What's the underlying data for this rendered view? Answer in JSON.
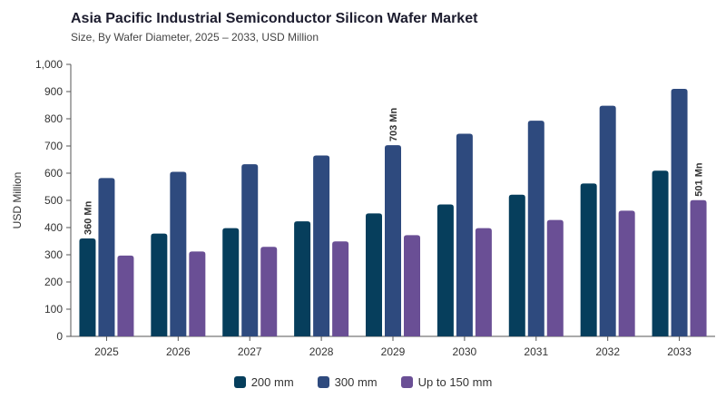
{
  "chart_data": {
    "type": "bar",
    "title": "Asia Pacific Industrial Semiconductor Silicon Wafer Market",
    "subtitle": "Size, By Wafer Diameter, 2025 – 2033, USD Million",
    "xlabel": "",
    "ylabel": "USD Million",
    "ylim": [
      0,
      1000
    ],
    "yticks": [
      "0",
      "100",
      "200",
      "300",
      "400",
      "500",
      "600",
      "700",
      "800",
      "900",
      "1,000"
    ],
    "categories": [
      "2025",
      "2026",
      "2027",
      "2028",
      "2029",
      "2030",
      "2031",
      "2032",
      "2033"
    ],
    "series": [
      {
        "name": "200 mm",
        "color": "#063e5c",
        "values": [
          360,
          378,
          398,
          423,
          452,
          485,
          521,
          562,
          609
        ]
      },
      {
        "name": "300 mm",
        "color": "#2e4a7e",
        "values": [
          582,
          605,
          633,
          665,
          703,
          745,
          793,
          848,
          910
        ]
      },
      {
        "name": "Up to 150 mm",
        "color": "#6a4f95",
        "values": [
          297,
          312,
          329,
          349,
          372,
          398,
          428,
          462,
          501
        ]
      }
    ],
    "annotations": [
      {
        "series": 0,
        "category": "2025",
        "text": "360 Mn"
      },
      {
        "series": 1,
        "category": "2029",
        "text": "703 Mn"
      },
      {
        "series": 2,
        "category": "2033",
        "text": "501 Mn"
      }
    ],
    "grid": false,
    "legend_position": "bottom-center"
  }
}
